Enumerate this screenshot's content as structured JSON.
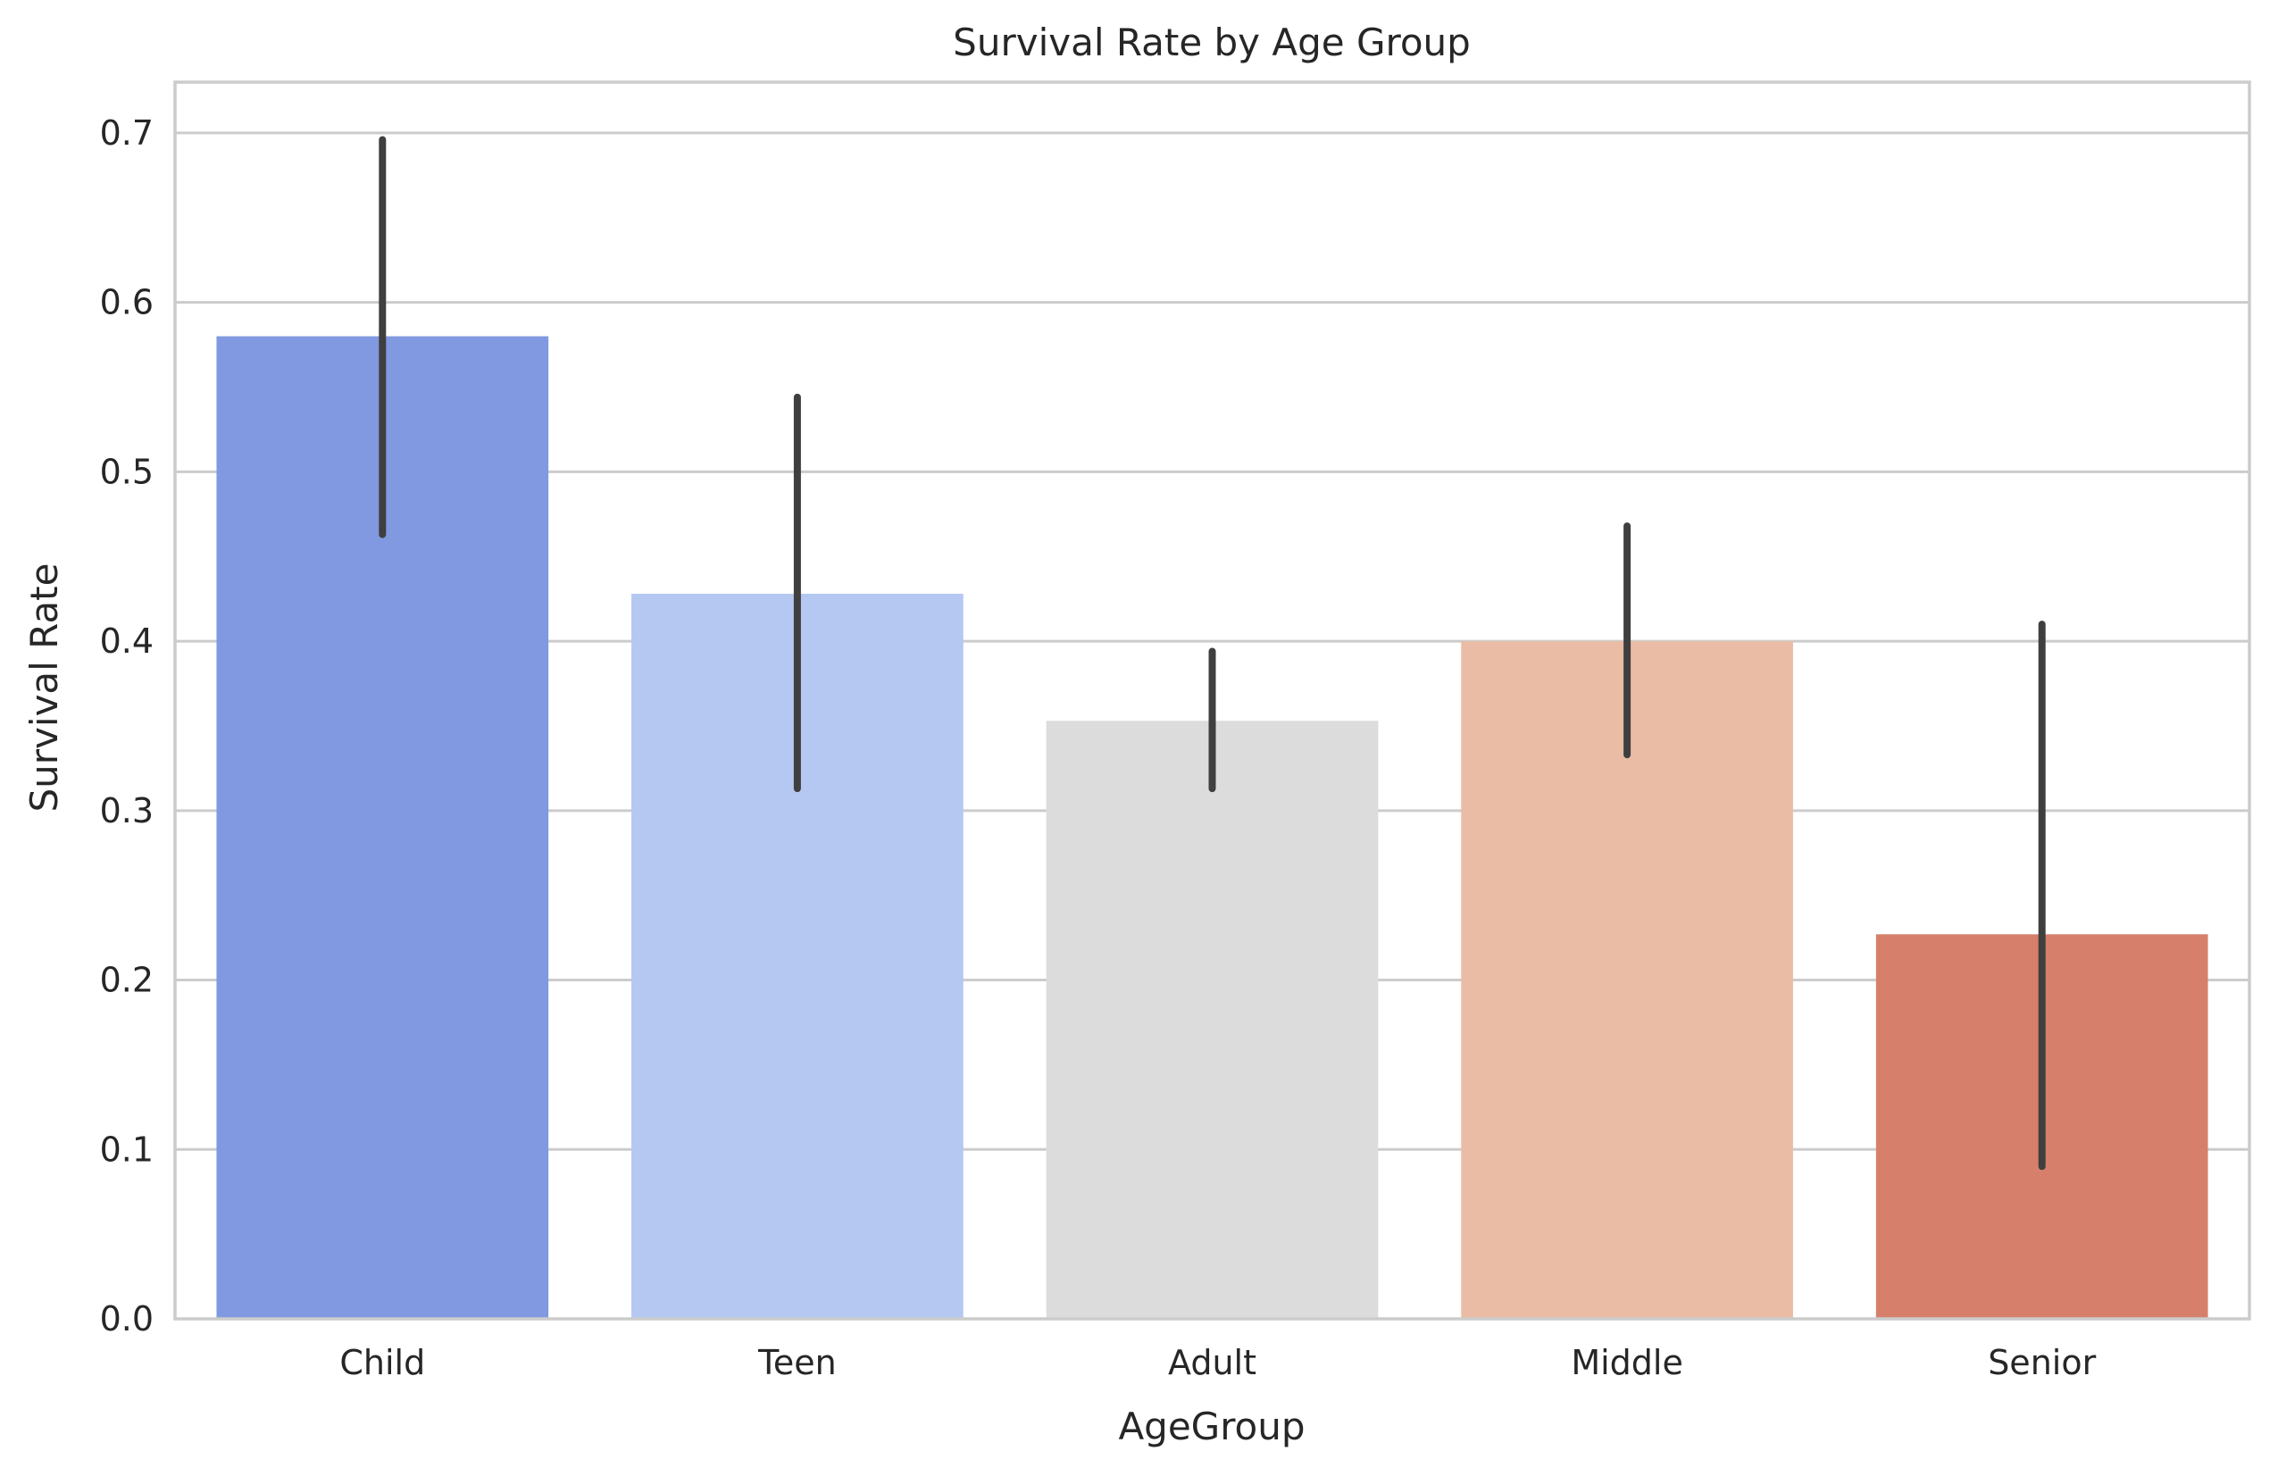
{
  "chart_data": {
    "type": "bar",
    "title": "Survival Rate by Age Group",
    "xlabel": "AgeGroup",
    "ylabel": "Survival Rate",
    "categories": [
      "Child",
      "Teen",
      "Adult",
      "Middle",
      "Senior"
    ],
    "values": [
      0.58,
      0.428,
      0.353,
      0.4,
      0.227
    ],
    "error_bars": [
      {
        "low": 0.463,
        "high": 0.696
      },
      {
        "low": 0.313,
        "high": 0.544
      },
      {
        "low": 0.313,
        "high": 0.394
      },
      {
        "low": 0.333,
        "high": 0.468
      },
      {
        "low": 0.09,
        "high": 0.41
      }
    ],
    "colors": [
      "#8099e1",
      "#b5c8f2",
      "#dcdcdc",
      "#ebbca5",
      "#d67f6b"
    ],
    "ylim": [
      0.0,
      0.73
    ],
    "yticks": [
      "0.0",
      "0.1",
      "0.2",
      "0.3",
      "0.4",
      "0.5",
      "0.6",
      "0.7"
    ],
    "grid": "horizontal",
    "grid_color": "#cccccc",
    "spine_color": "#cccccc",
    "errorbar_color": "#3f3f3f"
  }
}
